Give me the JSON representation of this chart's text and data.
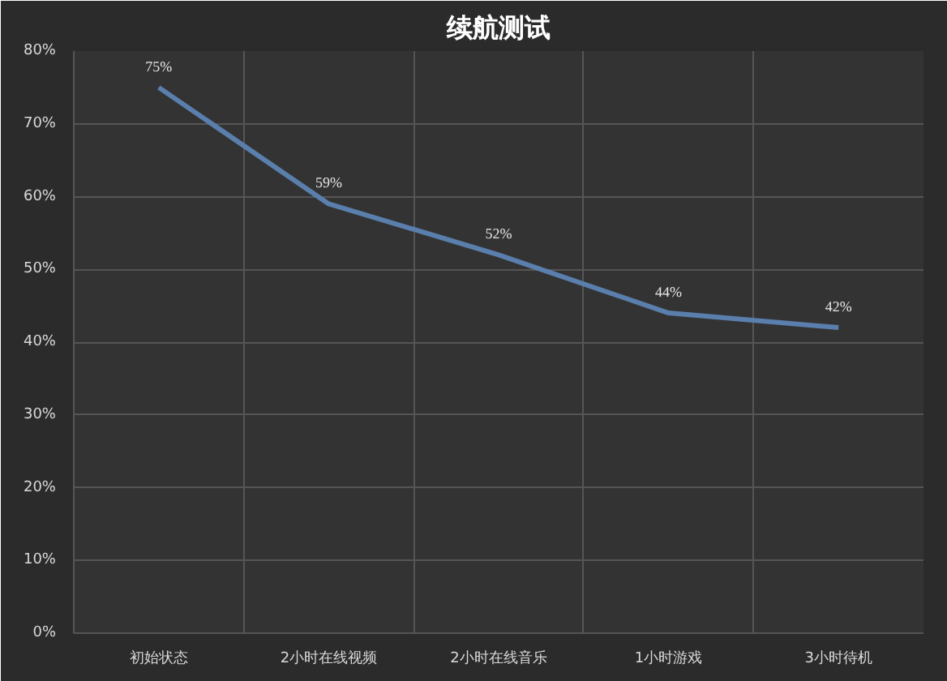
{
  "chart_data": {
    "type": "line",
    "title": "续航测试",
    "categories": [
      "初始状态",
      "2小时在线视频",
      "2小时在线音乐",
      "1小时游戏",
      "3小时待机"
    ],
    "series": [
      {
        "color": "#5a7fad",
        "values": [
          75,
          59,
          52,
          44,
          42
        ],
        "value_labels": [
          "75%",
          "59%",
          "52%",
          "44%",
          "42%"
        ]
      }
    ],
    "ylim": [
      0,
      80
    ],
    "yticks": [
      {
        "value": 0,
        "label": "0%"
      },
      {
        "value": 10,
        "label": "10%"
      },
      {
        "value": 20,
        "label": "20%"
      },
      {
        "value": 30,
        "label": "30%"
      },
      {
        "value": 40,
        "label": "40%"
      },
      {
        "value": 50,
        "label": "50%"
      },
      {
        "value": 60,
        "label": "60%"
      },
      {
        "value": 70,
        "label": "70%"
      },
      {
        "value": 80,
        "label": "80%"
      }
    ],
    "grid": true,
    "marker": "none",
    "line_style": "solid"
  }
}
